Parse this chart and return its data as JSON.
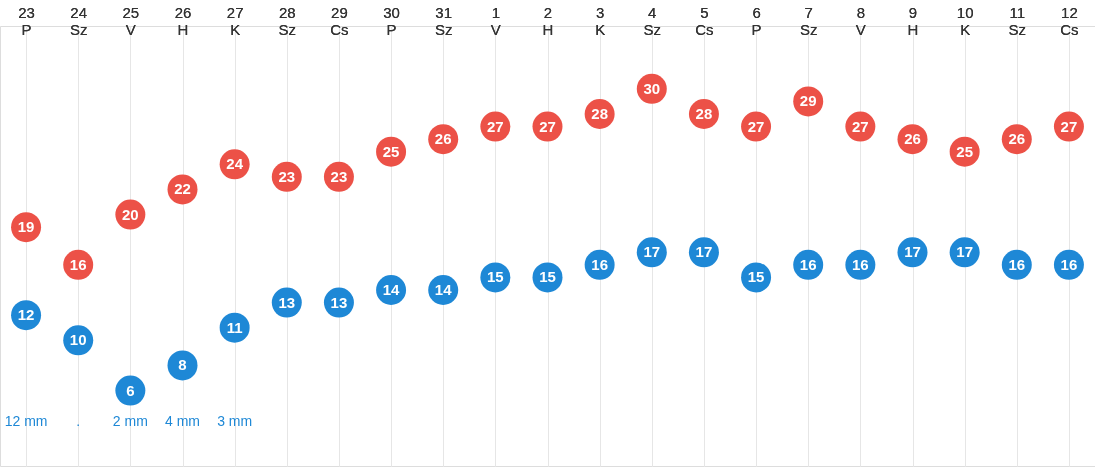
{
  "chart_data": {
    "type": "scatter",
    "categories": [
      "23\nP",
      "24\nSz",
      "25\nV",
      "26\nH",
      "27\nK",
      "28\nSz",
      "29\nCs",
      "30\nP",
      "31\nSz",
      "1\nV",
      "2\nH",
      "3\nK",
      "4\nSz",
      "5\nCs",
      "6\nP",
      "7\nSz",
      "8\nV",
      "9\nH",
      "10\nK",
      "11\nSz",
      "12\nCs"
    ],
    "series": [
      {
        "color": "#ec5147",
        "values": [
          19,
          16,
          20,
          22,
          24,
          23,
          23,
          25,
          26,
          27,
          27,
          28,
          30,
          28,
          27,
          29,
          27,
          26,
          25,
          26,
          27
        ]
      },
      {
        "color": "#1e88d6",
        "values": [
          12,
          10,
          6,
          8,
          11,
          13,
          13,
          14,
          14,
          15,
          15,
          16,
          17,
          17,
          15,
          16,
          16,
          17,
          17,
          16,
          16
        ]
      }
    ],
    "ylim": [
      0,
      35
    ],
    "tick_labels": "x",
    "data_labels": true,
    "marker": "circle",
    "grid": "x",
    "annotations": [
      "12 mm",
      ".",
      "2 mm",
      "4 mm",
      "3 mm"
    ]
  }
}
